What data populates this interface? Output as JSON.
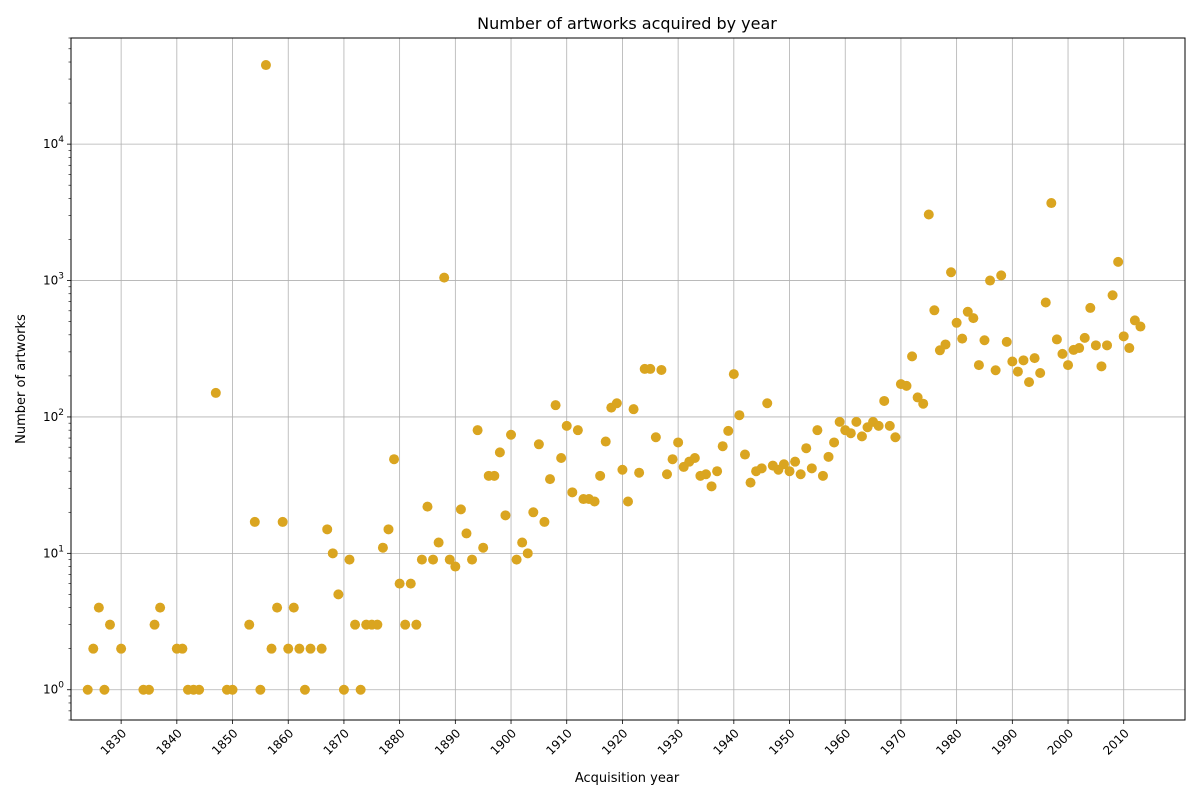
{
  "chart_data": {
    "type": "scatter",
    "title": "Number of artworks acquired by year",
    "xlabel": "Acquisition year",
    "ylabel": "Number of artworks",
    "y_scale": "log",
    "ylim": [
      0.6,
      60000
    ],
    "xlim": [
      1821,
      2021
    ],
    "grid": true,
    "marker_color": "#DAA520",
    "x_ticks": [
      1830,
      1840,
      1850,
      1860,
      1870,
      1880,
      1890,
      1900,
      1910,
      1920,
      1930,
      1940,
      1950,
      1960,
      1970,
      1980,
      1990,
      2000,
      2010
    ],
    "y_ticks": [
      {
        "value": 1,
        "base": "10",
        "exp": "0"
      },
      {
        "value": 10,
        "base": "10",
        "exp": "1"
      },
      {
        "value": 100,
        "base": "10",
        "exp": "2"
      },
      {
        "value": 1000,
        "base": "10",
        "exp": "3"
      },
      {
        "value": 10000,
        "base": "10",
        "exp": "4"
      }
    ],
    "points": [
      [
        1824,
        1
      ],
      [
        1825,
        2
      ],
      [
        1826,
        4
      ],
      [
        1827,
        1
      ],
      [
        1828,
        3
      ],
      [
        1830,
        2
      ],
      [
        1834,
        1
      ],
      [
        1835,
        1
      ],
      [
        1836,
        3
      ],
      [
        1837,
        4
      ],
      [
        1840,
        2
      ],
      [
        1841,
        2
      ],
      [
        1842,
        1
      ],
      [
        1843,
        1
      ],
      [
        1844,
        1
      ],
      [
        1847,
        150
      ],
      [
        1849,
        1
      ],
      [
        1850,
        1
      ],
      [
        1853,
        3
      ],
      [
        1854,
        17
      ],
      [
        1855,
        1
      ],
      [
        1856,
        38000
      ],
      [
        1857,
        2
      ],
      [
        1858,
        4
      ],
      [
        1859,
        17
      ],
      [
        1860,
        2
      ],
      [
        1861,
        4
      ],
      [
        1862,
        2
      ],
      [
        1863,
        1
      ],
      [
        1864,
        2
      ],
      [
        1866,
        2
      ],
      [
        1867,
        15
      ],
      [
        1868,
        10
      ],
      [
        1869,
        5
      ],
      [
        1870,
        1
      ],
      [
        1871,
        9
      ],
      [
        1872,
        3
      ],
      [
        1873,
        1
      ],
      [
        1874,
        3
      ],
      [
        1875,
        3
      ],
      [
        1876,
        3
      ],
      [
        1877,
        11
      ],
      [
        1878,
        15
      ],
      [
        1879,
        49
      ],
      [
        1880,
        6
      ],
      [
        1881,
        3
      ],
      [
        1882,
        6
      ],
      [
        1883,
        3
      ],
      [
        1884,
        9
      ],
      [
        1885,
        22
      ],
      [
        1886,
        9
      ],
      [
        1887,
        12
      ],
      [
        1888,
        1050
      ],
      [
        1889,
        9
      ],
      [
        1890,
        8
      ],
      [
        1891,
        21
      ],
      [
        1892,
        14
      ],
      [
        1893,
        9
      ],
      [
        1894,
        80
      ],
      [
        1895,
        11
      ],
      [
        1896,
        37
      ],
      [
        1897,
        37
      ],
      [
        1898,
        55
      ],
      [
        1899,
        19
      ],
      [
        1900,
        74
      ],
      [
        1901,
        9
      ],
      [
        1902,
        12
      ],
      [
        1903,
        10
      ],
      [
        1904,
        20
      ],
      [
        1905,
        63
      ],
      [
        1906,
        17
      ],
      [
        1907,
        35
      ],
      [
        1908,
        122
      ],
      [
        1909,
        50
      ],
      [
        1910,
        86
      ],
      [
        1911,
        28
      ],
      [
        1912,
        80
      ],
      [
        1913,
        25
      ],
      [
        1914,
        25
      ],
      [
        1915,
        24
      ],
      [
        1916,
        37
      ],
      [
        1917,
        66
      ],
      [
        1918,
        117
      ],
      [
        1919,
        126
      ],
      [
        1920,
        41
      ],
      [
        1921,
        24
      ],
      [
        1922,
        114
      ],
      [
        1923,
        39
      ],
      [
        1924,
        225
      ],
      [
        1925,
        225
      ],
      [
        1926,
        71
      ],
      [
        1927,
        221
      ],
      [
        1928,
        38
      ],
      [
        1929,
        49
      ],
      [
        1930,
        65
      ],
      [
        1931,
        43
      ],
      [
        1932,
        47
      ],
      [
        1933,
        50
      ],
      [
        1934,
        37
      ],
      [
        1935,
        38
      ],
      [
        1936,
        31
      ],
      [
        1937,
        40
      ],
      [
        1938,
        61
      ],
      [
        1939,
        79
      ],
      [
        1940,
        206
      ],
      [
        1941,
        103
      ],
      [
        1942,
        53
      ],
      [
        1943,
        33
      ],
      [
        1944,
        40
      ],
      [
        1945,
        42
      ],
      [
        1946,
        126
      ],
      [
        1947,
        44
      ],
      [
        1948,
        41
      ],
      [
        1949,
        45
      ],
      [
        1950,
        40
      ],
      [
        1951,
        47
      ],
      [
        1952,
        38
      ],
      [
        1953,
        59
      ],
      [
        1954,
        42
      ],
      [
        1955,
        80
      ],
      [
        1956,
        37
      ],
      [
        1957,
        51
      ],
      [
        1958,
        65
      ],
      [
        1959,
        92
      ],
      [
        1960,
        80
      ],
      [
        1961,
        76
      ],
      [
        1962,
        92
      ],
      [
        1963,
        72
      ],
      [
        1964,
        84
      ],
      [
        1965,
        92
      ],
      [
        1966,
        86
      ],
      [
        1967,
        131
      ],
      [
        1968,
        86
      ],
      [
        1969,
        71
      ],
      [
        1970,
        174
      ],
      [
        1971,
        169
      ],
      [
        1972,
        278
      ],
      [
        1973,
        139
      ],
      [
        1974,
        125
      ],
      [
        1975,
        3050
      ],
      [
        1976,
        605
      ],
      [
        1977,
        308
      ],
      [
        1978,
        340
      ],
      [
        1979,
        1150
      ],
      [
        1980,
        490
      ],
      [
        1981,
        375
      ],
      [
        1982,
        590
      ],
      [
        1983,
        530
      ],
      [
        1984,
        240
      ],
      [
        1985,
        365
      ],
      [
        1986,
        1000
      ],
      [
        1987,
        220
      ],
      [
        1988,
        1090
      ],
      [
        1989,
        355
      ],
      [
        1990,
        255
      ],
      [
        1991,
        215
      ],
      [
        1992,
        260
      ],
      [
        1993,
        180
      ],
      [
        1994,
        270
      ],
      [
        1995,
        210
      ],
      [
        1996,
        690
      ],
      [
        1997,
        3700
      ],
      [
        1998,
        370
      ],
      [
        1999,
        290
      ],
      [
        2000,
        240
      ],
      [
        2001,
        310
      ],
      [
        2002,
        320
      ],
      [
        2003,
        380
      ],
      [
        2004,
        630
      ],
      [
        2005,
        335
      ],
      [
        2006,
        235
      ],
      [
        2007,
        335
      ],
      [
        2008,
        780
      ],
      [
        2009,
        1370
      ],
      [
        2010,
        390
      ],
      [
        2011,
        320
      ],
      [
        2012,
        510
      ],
      [
        2013,
        460
      ]
    ]
  }
}
